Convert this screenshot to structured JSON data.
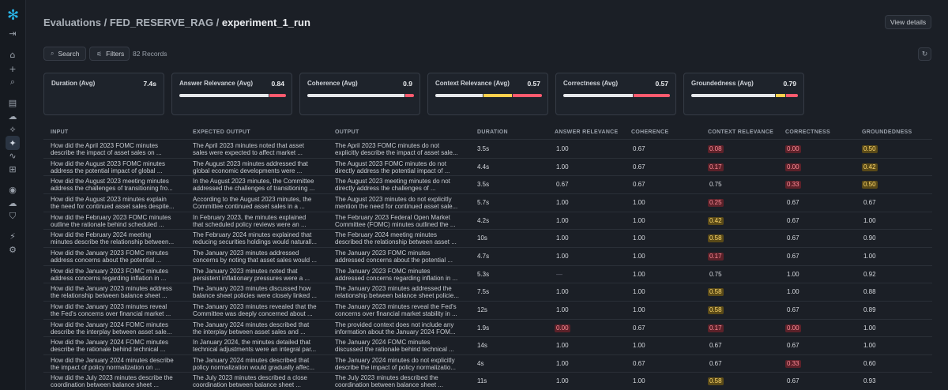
{
  "breadcrumb": {
    "part1": "Evaluations",
    "sep1": " / ",
    "part2": "FED_RESERVE_RAG",
    "sep2": " / ",
    "current": "experiment_1_run"
  },
  "header": {
    "view_details": "View details"
  },
  "toolbar": {
    "search": "Search",
    "filters": "Filters",
    "records": "82 Records"
  },
  "colors": {
    "green": "#e6e8eb",
    "yellow": "#ffd04d",
    "red": "#ff5a6e",
    "accent": "#29b5e8"
  },
  "metrics": [
    {
      "label": "Duration (Avg)",
      "value": "7.4s",
      "bar": []
    },
    {
      "label": "Answer Relevance (Avg)",
      "value": "0.84",
      "bar": [
        {
          "color": "#e6e8eb",
          "frac": 0.84
        },
        {
          "color": "#ff5a6e",
          "frac": 0.16
        }
      ]
    },
    {
      "label": "Coherence (Avg)",
      "value": "0.9",
      "bar": [
        {
          "color": "#e6e8eb",
          "frac": 0.92
        },
        {
          "color": "#ff5a6e",
          "frac": 0.08
        }
      ]
    },
    {
      "label": "Context Relevance (Avg)",
      "value": "0.57",
      "bar": [
        {
          "color": "#e6e8eb",
          "frac": 0.45
        },
        {
          "color": "#ffd04d",
          "frac": 0.27
        },
        {
          "color": "#ff5a6e",
          "frac": 0.28
        }
      ]
    },
    {
      "label": "Correctness (Avg)",
      "value": "0.57",
      "bar": [
        {
          "color": "#e6e8eb",
          "frac": 0.66
        },
        {
          "color": "#ff5a6e",
          "frac": 0.34
        }
      ]
    },
    {
      "label": "Groundedness (Avg)",
      "value": "0.79",
      "bar": [
        {
          "color": "#e6e8eb",
          "frac": 0.8
        },
        {
          "color": "#ffd04d",
          "frac": 0.09
        },
        {
          "color": "#ff5a6e",
          "frac": 0.11
        }
      ]
    }
  ],
  "columns": [
    "INPUT",
    "EXPECTED OUTPUT",
    "OUTPUT",
    "DURATION",
    "ANSWER RELEVANCE",
    "COHERENCE",
    "CONTEXT RELEVANCE",
    "CORRECTNESS",
    "GROUNDEDNESS"
  ],
  "rows": [
    {
      "input": [
        "How did the April 2023 FOMC minutes",
        "describe the impact of asset sales on ..."
      ],
      "expected": [
        "The April 2023 minutes noted that asset",
        "sales were expected to affect market ..."
      ],
      "output": [
        " The April 2023 FOMC minutes do not",
        "explicitly describe the impact of asset sale..."
      ],
      "duration": "3.5s",
      "ar": "1.00",
      "coh": "0.67",
      "cr": "0.08",
      "corr": "0.00",
      "gr": "0.50"
    },
    {
      "input": [
        "How did the August 2023 FOMC minutes",
        "address the potential impact of global ..."
      ],
      "expected": [
        "The August 2023 minutes addressed that",
        "global economic developments were ..."
      ],
      "output": [
        " The August 2023 FOMC minutes do not",
        "directly address the potential impact of ..."
      ],
      "duration": "4.4s",
      "ar": "1.00",
      "coh": "0.67",
      "cr": "0.17",
      "corr": "0.00",
      "gr": "0.42"
    },
    {
      "input": [
        "How did the August 2023 meeting minutes",
        "address the challenges of transitioning fro..."
      ],
      "expected": [
        "In the August 2023 minutes, the Committee",
        "addressed the challenges of transitioning ..."
      ],
      "output": [
        " The August 2023 meeting minutes do not",
        "directly address the challenges of ..."
      ],
      "duration": "3.5s",
      "ar": "0.67",
      "coh": "0.67",
      "cr": "0.75",
      "corr": "0.33",
      "gr": "0.50"
    },
    {
      "input": [
        "How did the August 2023 minutes explain",
        "the need for continued asset sales despite..."
      ],
      "expected": [
        "According to the August 2023 minutes, the",
        "Committee continued asset sales in a ..."
      ],
      "output": [
        " The August 2023 minutes do not explicitly",
        "mention the need for continued asset sale..."
      ],
      "duration": "5.7s",
      "ar": "1.00",
      "coh": "1.00",
      "cr": "0.25",
      "corr": "0.67",
      "gr": "0.67"
    },
    {
      "input": [
        "How did the February 2023 FOMC minutes",
        "outline the rationale behind scheduled ..."
      ],
      "expected": [
        "In February 2023, the minutes explained",
        "that scheduled policy reviews were an ..."
      ],
      "output": [
        " The February 2023 Federal Open Market",
        "Committee (FOMC) minutes outlined the ..."
      ],
      "duration": "4.2s",
      "ar": "1.00",
      "coh": "1.00",
      "cr": "0.42",
      "corr": "0.67",
      "gr": "1.00"
    },
    {
      "input": [
        "How did the February 2024 meeting",
        "minutes describe the relationship between..."
      ],
      "expected": [
        "The February 2024 minutes explained that",
        "reducing securities holdings would naturall..."
      ],
      "output": [
        " The February 2024 meeting minutes",
        "described the relationship between asset ..."
      ],
      "duration": "10s",
      "ar": "1.00",
      "coh": "1.00",
      "cr": "0.58",
      "corr": "0.67",
      "gr": "0.90"
    },
    {
      "input": [
        "How did the January 2023 FOMC minutes",
        "address concerns about the potential ..."
      ],
      "expected": [
        "The January 2023 minutes addressed",
        "concerns by noting that asset sales would ..."
      ],
      "output": [
        " The January 2023 FOMC minutes",
        "addressed concerns about the potential ..."
      ],
      "duration": "4.7s",
      "ar": "1.00",
      "coh": "1.00",
      "cr": "0.17",
      "corr": "0.67",
      "gr": "1.00"
    },
    {
      "input": [
        "How did the January 2023 FOMC minutes",
        "address concerns regarding inflation in ..."
      ],
      "expected": [
        "The January 2023 minutes noted that",
        "persistent inflationary pressures were a ..."
      ],
      "output": [
        " The January 2023 FOMC minutes",
        "addressed concerns regarding inflation in ..."
      ],
      "duration": "5.3s",
      "ar": "—",
      "coh": "1.00",
      "cr": "0.75",
      "corr": "1.00",
      "gr": "0.92"
    },
    {
      "input": [
        "How did the January 2023 minutes address",
        "the relationship between balance sheet ..."
      ],
      "expected": [
        "The January 2023 minutes discussed how",
        "balance sheet policies were closely linked ..."
      ],
      "output": [
        " The January 2023 minutes addressed the",
        "relationship between balance sheet policie..."
      ],
      "duration": "7.5s",
      "ar": "1.00",
      "coh": "1.00",
      "cr": "0.58",
      "corr": "1.00",
      "gr": "0.88"
    },
    {
      "input": [
        "How did the January 2023 minutes reveal",
        "the Fed's concerns over financial market ..."
      ],
      "expected": [
        "The January 2023 minutes revealed that the",
        "Committee was deeply concerned about ..."
      ],
      "output": [
        " The January 2023 minutes reveal the Fed's",
        "concerns over financial market stability in ..."
      ],
      "duration": "12s",
      "ar": "1.00",
      "coh": "1.00",
      "cr": "0.58",
      "corr": "0.67",
      "gr": "0.89"
    },
    {
      "input": [
        "How did the January 2024 FOMC minutes",
        "describe the interplay between asset sale..."
      ],
      "expected": [
        "The January 2024 minutes described that",
        "the interplay between asset sales and ..."
      ],
      "output": [
        " The provided context does not include any",
        "information about the January 2024 FOM..."
      ],
      "duration": "1.9s",
      "ar": "0.00",
      "coh": "0.67",
      "cr": "0.17",
      "corr": "0.00",
      "gr": "1.00"
    },
    {
      "input": [
        "How did the January 2024 FOMC minutes",
        "describe the rationale behind technical ..."
      ],
      "expected": [
        "In January 2024, the minutes detailed that",
        "technical adjustments were an integral par..."
      ],
      "output": [
        " The January 2024 FOMC minutes",
        "discussed the rationale behind technical ..."
      ],
      "duration": "14s",
      "ar": "1.00",
      "coh": "1.00",
      "cr": "0.67",
      "corr": "0.67",
      "gr": "1.00"
    },
    {
      "input": [
        "How did the January 2024 minutes describe",
        "the impact of policy normalization on ..."
      ],
      "expected": [
        "The January 2024 minutes described that",
        "policy normalization would gradually affec..."
      ],
      "output": [
        " The January 2024 minutes do not explicitly",
        "describe the impact of policy normalizatio..."
      ],
      "duration": "4s",
      "ar": "1.00",
      "coh": "0.67",
      "cr": "0.67",
      "corr": "0.33",
      "gr": "0.60"
    },
    {
      "input": [
        "How did the July 2023 minutes describe the",
        "coordination between balance sheet ..."
      ],
      "expected": [
        "The July 2023 minutes described a close",
        "coordination between balance sheet ..."
      ],
      "output": [
        " The July 2023 minutes described the",
        "coordination between balance sheet ..."
      ],
      "duration": "11s",
      "ar": "1.00",
      "coh": "1.00",
      "cr": "0.58",
      "corr": "0.67",
      "gr": "0.93"
    }
  ]
}
